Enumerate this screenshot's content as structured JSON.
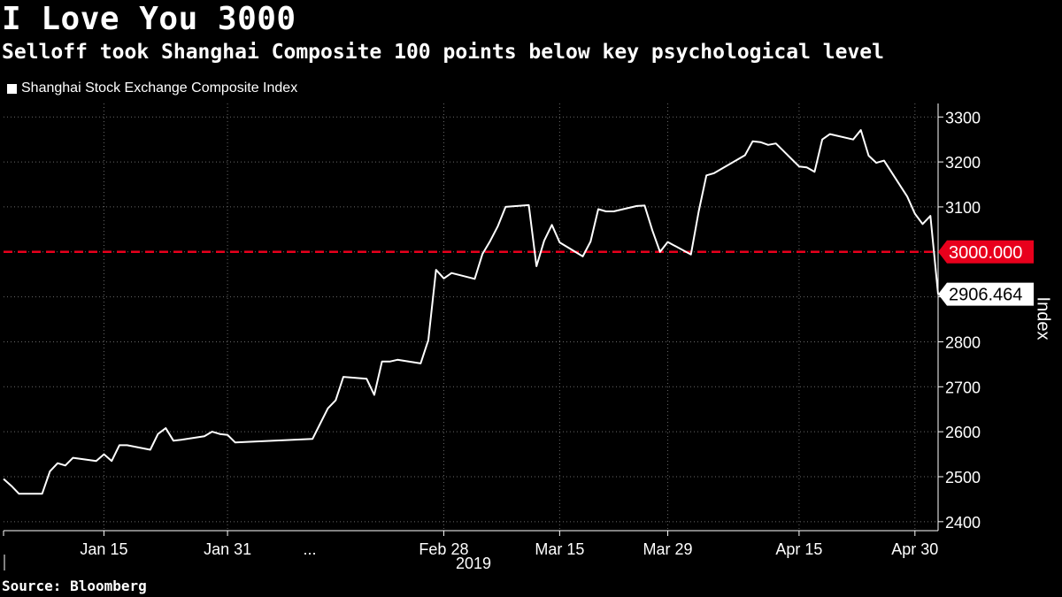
{
  "header": {
    "title": "I Love You 3000",
    "subtitle": "Selloff took Shanghai Composite 100 points below key psychological level"
  },
  "footer": {
    "source": "Source: Bloomberg"
  },
  "colors": {
    "background": "#000000",
    "line": "#ffffff",
    "threshold": "#e8001c",
    "grid": "#6a6a6a"
  },
  "chart_data": {
    "type": "line",
    "legend": {
      "label": "Shanghai Stock Exchange Composite Index",
      "placement": "top-left"
    },
    "ylabel": "Index",
    "ylim": [
      2380,
      3330
    ],
    "yticks": [
      2400,
      2500,
      2600,
      2700,
      2800,
      2900,
      3000,
      3100,
      3200,
      3300
    ],
    "xlim": [
      "2019-01-02",
      "2019-05-03"
    ],
    "x_ticks": [
      {
        "date": "2019-01-15",
        "label": "Jan 15"
      },
      {
        "date": "2019-01-31",
        "label": "Jan 31"
      },
      {
        "date": "2019-02-28",
        "label": "Feb 28"
      },
      {
        "date": "2019-03-15",
        "label": "Mar 15"
      },
      {
        "date": "2019-03-29",
        "label": "Mar 29"
      },
      {
        "date": "2019-04-15",
        "label": "Apr 15"
      },
      {
        "date": "2019-04-30",
        "label": "Apr 30"
      }
    ],
    "x_break_label": "...",
    "x_year_label": "2019",
    "grid": true,
    "threshold": {
      "value": 3000,
      "label": "3000.000"
    },
    "last_value_label": "2906.464",
    "series": [
      {
        "name": "Shanghai Stock Exchange Composite Index",
        "points": [
          [
            "2019-01-02",
            2495
          ],
          [
            "2019-01-03",
            2480
          ],
          [
            "2019-01-04",
            2462
          ],
          [
            "2019-01-07",
            2462
          ],
          [
            "2019-01-08",
            2512
          ],
          [
            "2019-01-09",
            2530
          ],
          [
            "2019-01-10",
            2525
          ],
          [
            "2019-01-11",
            2542
          ],
          [
            "2019-01-14",
            2535
          ],
          [
            "2019-01-15",
            2550
          ],
          [
            "2019-01-16",
            2535
          ],
          [
            "2019-01-17",
            2570
          ],
          [
            "2019-01-18",
            2570
          ],
          [
            "2019-01-21",
            2560
          ],
          [
            "2019-01-22",
            2595
          ],
          [
            "2019-01-23",
            2608
          ],
          [
            "2019-01-24",
            2580
          ],
          [
            "2019-01-25",
            2582
          ],
          [
            "2019-01-28",
            2590
          ],
          [
            "2019-01-29",
            2600
          ],
          [
            "2019-01-30",
            2595
          ],
          [
            "2019-01-31",
            2593
          ],
          [
            "2019-02-01",
            2576
          ],
          [
            "2019-02-11",
            2584
          ],
          [
            "2019-02-12",
            2618
          ],
          [
            "2019-02-13",
            2652
          ],
          [
            "2019-02-14",
            2670
          ],
          [
            "2019-02-15",
            2722
          ],
          [
            "2019-02-18",
            2718
          ],
          [
            "2019-02-19",
            2682
          ],
          [
            "2019-02-20",
            2756
          ],
          [
            "2019-02-21",
            2756
          ],
          [
            "2019-02-22",
            2760
          ],
          [
            "2019-02-25",
            2752
          ],
          [
            "2019-02-26",
            2804
          ],
          [
            "2019-02-27",
            2960
          ],
          [
            "2019-02-28",
            2941
          ],
          [
            "2019-03-01",
            2953
          ],
          [
            "2019-03-04",
            2940
          ],
          [
            "2019-03-05",
            2995
          ],
          [
            "2019-03-06",
            3024
          ],
          [
            "2019-03-07",
            3057
          ],
          [
            "2019-03-08",
            3100
          ],
          [
            "2019-03-11",
            3104
          ],
          [
            "2019-03-12",
            2968
          ],
          [
            "2019-03-13",
            3025
          ],
          [
            "2019-03-14",
            3060
          ],
          [
            "2019-03-15",
            3021
          ],
          [
            "2019-03-18",
            2990
          ],
          [
            "2019-03-19",
            3023
          ],
          [
            "2019-03-20",
            3095
          ],
          [
            "2019-03-21",
            3090
          ],
          [
            "2019-03-22",
            3090
          ],
          [
            "2019-03-25",
            3102
          ],
          [
            "2019-03-26",
            3103
          ],
          [
            "2019-03-27",
            3048
          ],
          [
            "2019-03-28",
            3000
          ],
          [
            "2019-03-29",
            3022
          ],
          [
            "2019-04-01",
            2994
          ],
          [
            "2019-04-02",
            3090
          ],
          [
            "2019-04-03",
            3170
          ],
          [
            "2019-04-04",
            3175
          ],
          [
            "2019-04-08",
            3215
          ],
          [
            "2019-04-09",
            3246
          ],
          [
            "2019-04-10",
            3244
          ],
          [
            "2019-04-11",
            3238
          ],
          [
            "2019-04-12",
            3241
          ],
          [
            "2019-04-15",
            3190
          ],
          [
            "2019-04-16",
            3188
          ],
          [
            "2019-04-17",
            3178
          ],
          [
            "2019-04-18",
            3250
          ],
          [
            "2019-04-19",
            3262
          ],
          [
            "2019-04-22",
            3250
          ],
          [
            "2019-04-23",
            3271
          ],
          [
            "2019-04-24",
            3214
          ],
          [
            "2019-04-25",
            3198
          ],
          [
            "2019-04-26",
            3203
          ],
          [
            "2019-04-29",
            3123
          ],
          [
            "2019-04-30",
            3085
          ],
          [
            "2019-05-01",
            3062
          ],
          [
            "2019-05-02",
            3080
          ],
          [
            "2019-05-03",
            2906
          ]
        ]
      }
    ]
  }
}
